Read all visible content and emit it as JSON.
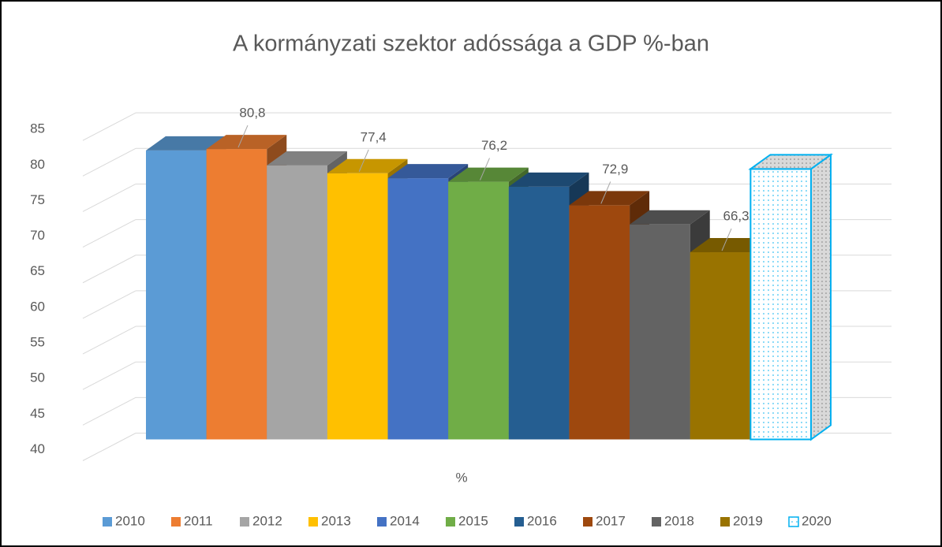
{
  "chart_data": {
    "type": "bar3d",
    "title": "A kormányzati szektor adóssága a GDP %-ban",
    "categories": [
      "%"
    ],
    "ylim": [
      40,
      85
    ],
    "yticks": [
      40,
      45,
      50,
      55,
      60,
      65,
      70,
      75,
      80,
      85
    ],
    "grid": true,
    "legend": "bottom",
    "series": [
      {
        "name": "2010",
        "color": "#5b9bd5",
        "values": [
          80.6
        ]
      },
      {
        "name": "2011",
        "color": "#ed7d31",
        "values": [
          80.8
        ],
        "value_labels": [
          "80,8"
        ]
      },
      {
        "name": "2012",
        "color": "#a5a5a5",
        "values": [
          78.5
        ]
      },
      {
        "name": "2013",
        "color": "#ffc000",
        "values": [
          77.4
        ],
        "value_labels": [
          "77,4"
        ]
      },
      {
        "name": "2014",
        "color": "#4472c4",
        "values": [
          76.7
        ]
      },
      {
        "name": "2015",
        "color": "#70ad47",
        "values": [
          76.2
        ],
        "value_labels": [
          "76,2"
        ]
      },
      {
        "name": "2016",
        "color": "#255e91",
        "values": [
          75.5
        ]
      },
      {
        "name": "2017",
        "color": "#9e480e",
        "values": [
          72.9
        ],
        "value_labels": [
          "72,9"
        ]
      },
      {
        "name": "2018",
        "color": "#636363",
        "values": [
          70.2
        ]
      },
      {
        "name": "2019",
        "color": "#997300",
        "values": [
          66.3
        ],
        "value_labels": [
          "66,3"
        ]
      },
      {
        "name": "2020",
        "color": "#00b0f0",
        "fill": "dotted",
        "values": [
          78
        ]
      }
    ]
  }
}
